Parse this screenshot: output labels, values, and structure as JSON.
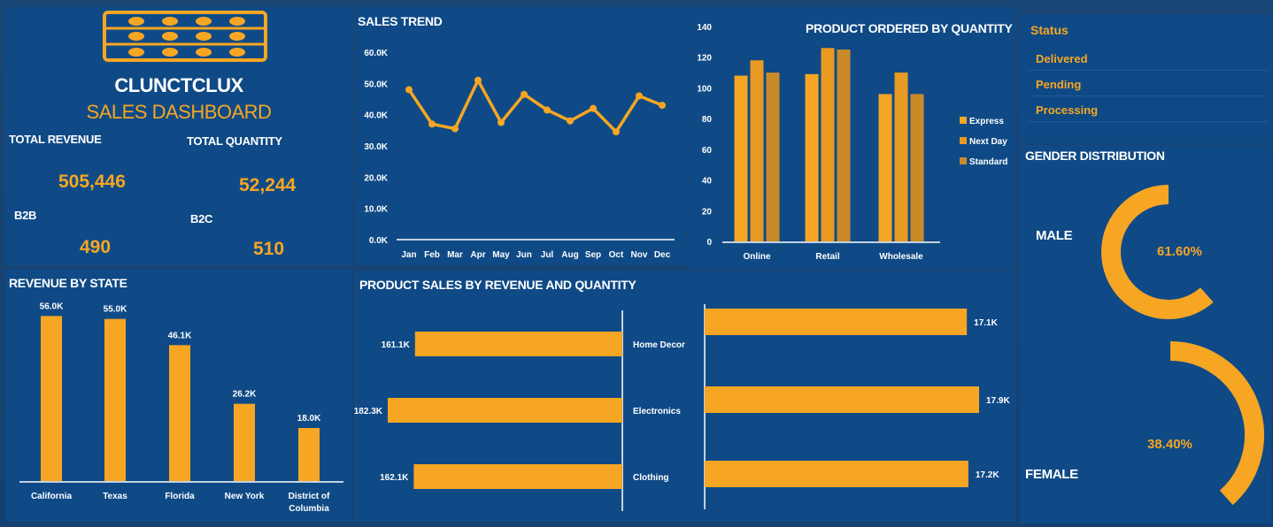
{
  "brand": {
    "company": "CLUNCTCLUX",
    "subtitle": "SALES DASHBOARD",
    "logo_icon": "abacus-icon",
    "accent": "#f6a623",
    "panel_bg": "#0f4a86"
  },
  "kpis": {
    "total_revenue_label": "TOTAL REVENUE",
    "total_revenue": "505,446",
    "total_quantity_label": "TOTAL QUANTITY",
    "total_quantity": "52,244",
    "b2b_label": "B2B",
    "b2b": "490",
    "b2c_label": "B2C",
    "b2c": "510"
  },
  "status": {
    "title": "Status",
    "items": [
      "Delivered",
      "Pending",
      "Processing"
    ]
  },
  "gender": {
    "title": "GENDER DISTRIBUTION",
    "male_label": "MALE",
    "male_value": "61.60%",
    "male_fraction": 0.616,
    "female_label": "FEMALE",
    "female_value": "38.40%",
    "female_fraction": 0.384
  },
  "chart_data": [
    {
      "id": "sales_trend",
      "type": "line",
      "title": "SALES TREND",
      "categories": [
        "Jan",
        "Feb",
        "Mar",
        "Apr",
        "May",
        "Jun",
        "Jul",
        "Aug",
        "Sep",
        "Oct",
        "Nov",
        "Dec"
      ],
      "values": [
        48000,
        37000,
        35500,
        51000,
        37500,
        46500,
        41500,
        38000,
        42000,
        34500,
        46000,
        43000
      ],
      "ylim": [
        0,
        60000
      ],
      "yticks": [
        "0.0K",
        "10.0K",
        "20.0K",
        "30.0K",
        "40.0K",
        "50.0K",
        "60.0K"
      ],
      "grid": false
    },
    {
      "id": "product_ordered_by_quantity",
      "type": "bar",
      "title": "PRODUCT ORDERED BY QUANTITY",
      "categories": [
        "Online",
        "Retail",
        "Wholesale"
      ],
      "series": [
        {
          "name": "Express",
          "values": [
            108,
            109,
            96
          ],
          "color": "#f6a623"
        },
        {
          "name": "Next Day",
          "values": [
            118,
            126,
            110
          ],
          "color": "#e89a22"
        },
        {
          "name": "Standard",
          "values": [
            110,
            125,
            96
          ],
          "color": "#c98a2a"
        }
      ],
      "ylim": [
        0,
        140
      ],
      "yticks": [
        "0",
        "20",
        "40",
        "60",
        "80",
        "100",
        "120",
        "140"
      ],
      "legend": "right"
    },
    {
      "id": "revenue_by_state",
      "type": "bar",
      "title": "REVENUE BY STATE",
      "categories": [
        "California",
        "Texas",
        "Florida",
        "New York",
        "District of Columbia"
      ],
      "values": [
        56000,
        55000,
        46100,
        26200,
        18000
      ],
      "data_labels": [
        "56.0K",
        "55.0K",
        "46.1K",
        "26.2K",
        "18.0K"
      ],
      "ylim": [
        0,
        60000
      ]
    },
    {
      "id": "product_sales_by_revenue_and_quantity",
      "type": "bar",
      "title": "PRODUCT SALES BY REVENUE AND QUANTITY",
      "categories": [
        "Home Decor",
        "Electronics",
        "Clothing"
      ],
      "series": [
        {
          "values": [
            161100,
            182300,
            162100
          ],
          "data_labels": [
            "161.1K",
            "182.3K",
            "162.1K"
          ]
        },
        {
          "values": [
            17100,
            17900,
            17200
          ],
          "data_labels": [
            "17.1K",
            "17.9K",
            "17.2K"
          ]
        }
      ]
    }
  ]
}
